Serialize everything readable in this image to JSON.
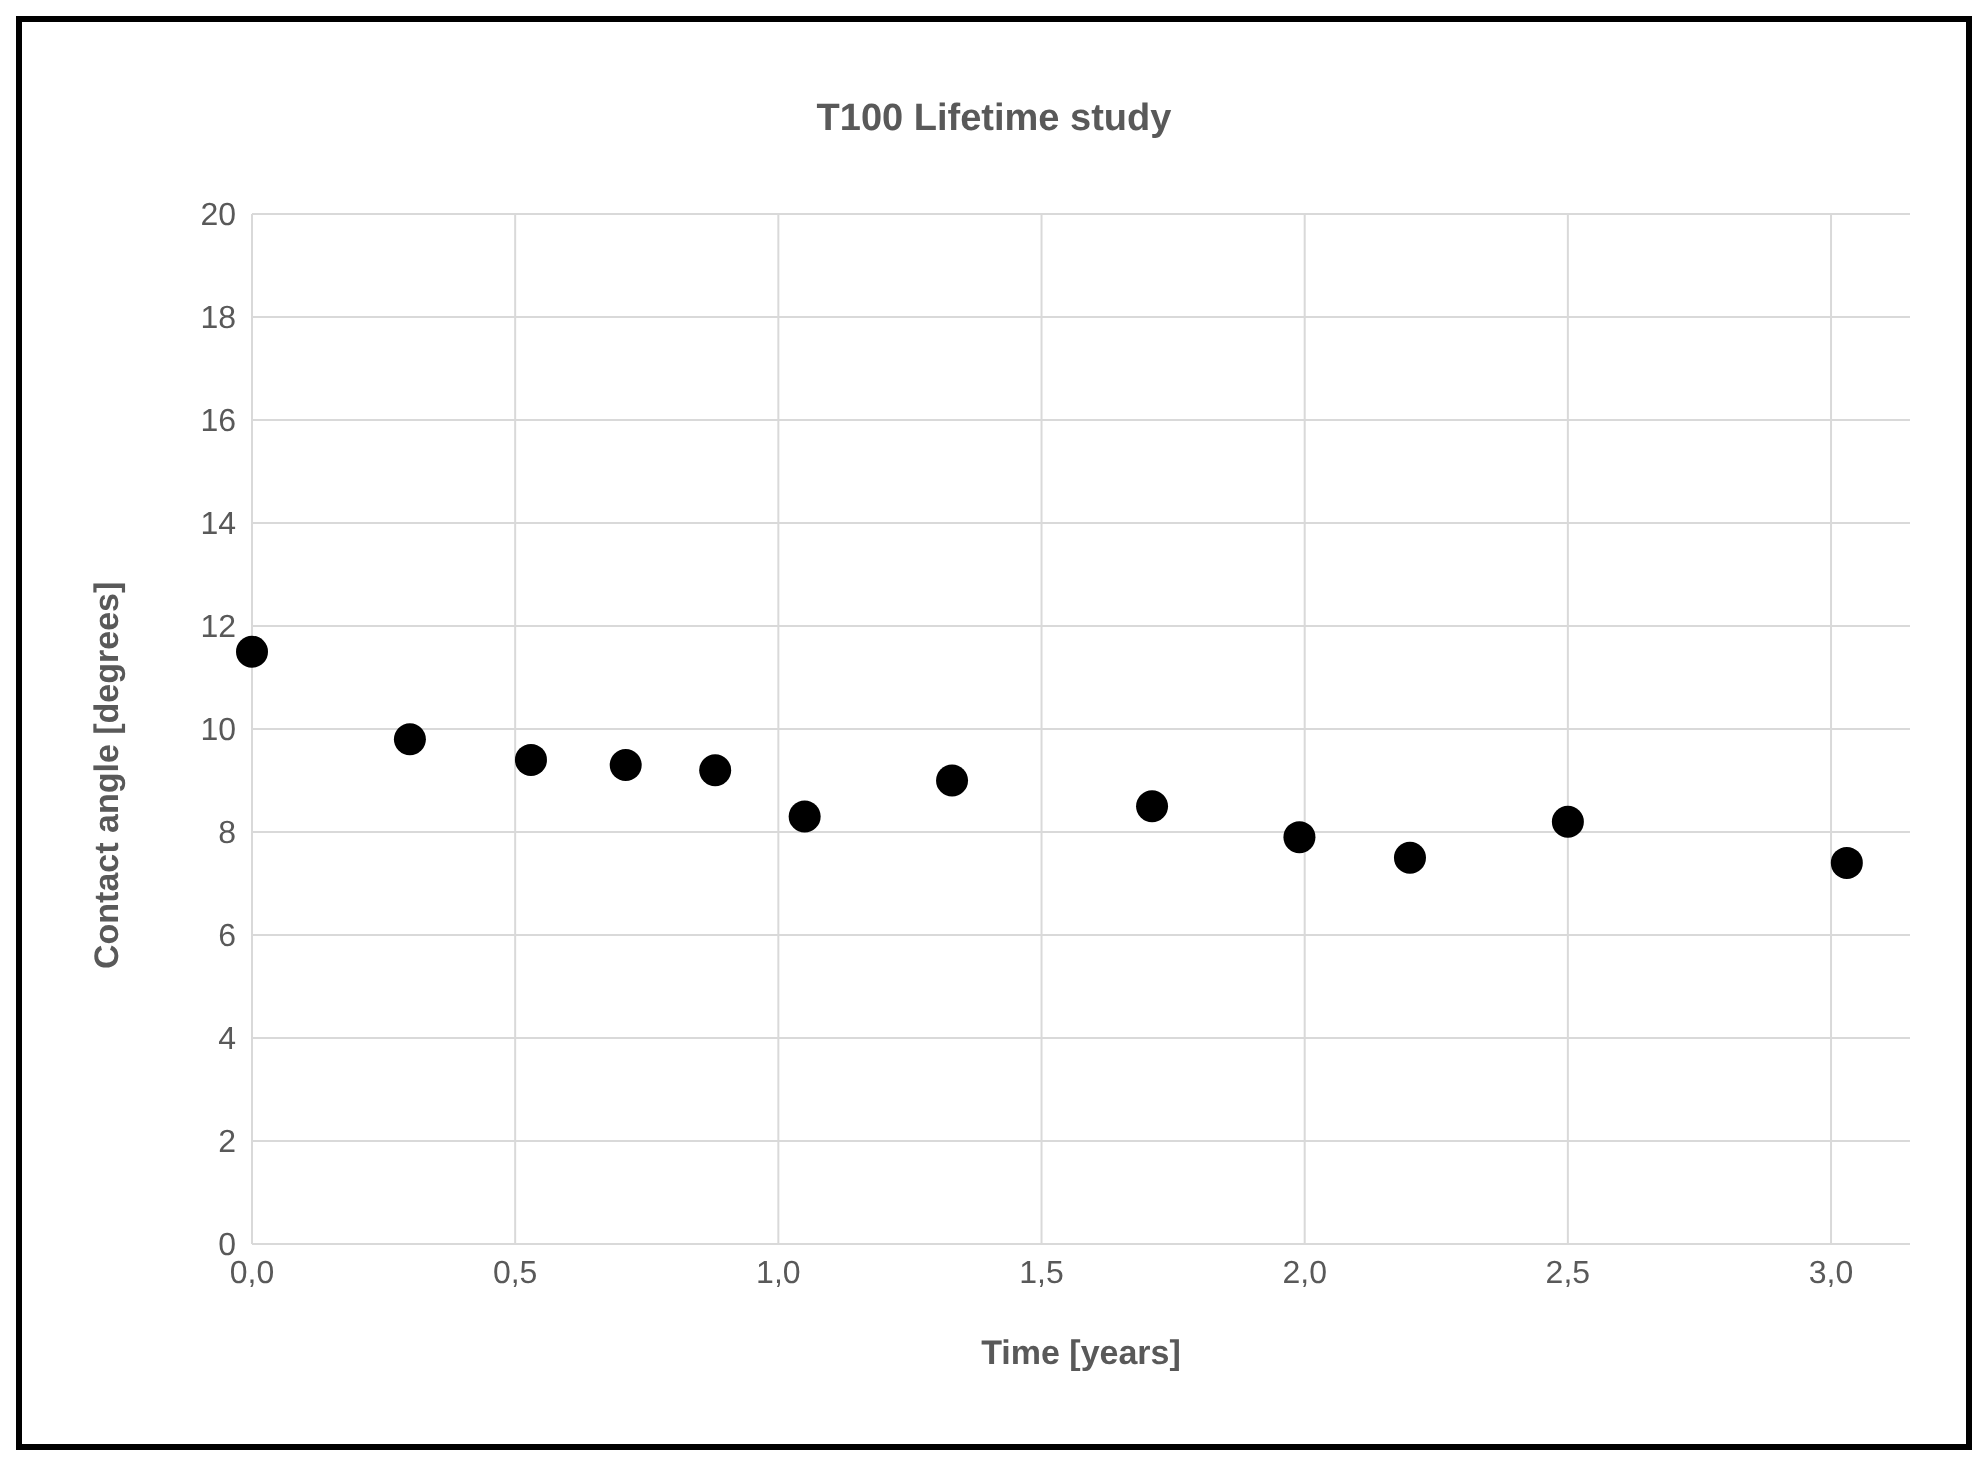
{
  "chart_data": {
    "type": "scatter",
    "title": "T100 Lifetime study",
    "xlabel": "Time [years]",
    "ylabel": "Contact angle [degrees]",
    "x": [
      0,
      0.3,
      0.53,
      0.71,
      0.88,
      1.05,
      1.33,
      1.71,
      1.99,
      2.2,
      2.5,
      3.03
    ],
    "series": [
      {
        "color": "#000000",
        "values": [
          11.5,
          9.8,
          9.4,
          9.3,
          9.2,
          8.3,
          9.0,
          8.5,
          7.9,
          7.5,
          8.2,
          7.4
        ]
      }
    ],
    "xlim": [
      0,
      3.15
    ],
    "xticks": [
      {
        "value": 0,
        "label": "0,0"
      },
      {
        "value": 0.5,
        "label": "0,5"
      },
      {
        "value": 1,
        "label": "1,0"
      },
      {
        "value": 1.5,
        "label": "1,5"
      },
      {
        "value": 2,
        "label": "2,0"
      },
      {
        "value": 2.5,
        "label": "2,5"
      },
      {
        "value": 3,
        "label": "3,0"
      }
    ],
    "ylim": [
      0,
      20
    ],
    "yticks": [
      0,
      2,
      4,
      6,
      8,
      10,
      12,
      14,
      16,
      18,
      20
    ],
    "grid": true,
    "legend": false,
    "marker": "circle"
  }
}
